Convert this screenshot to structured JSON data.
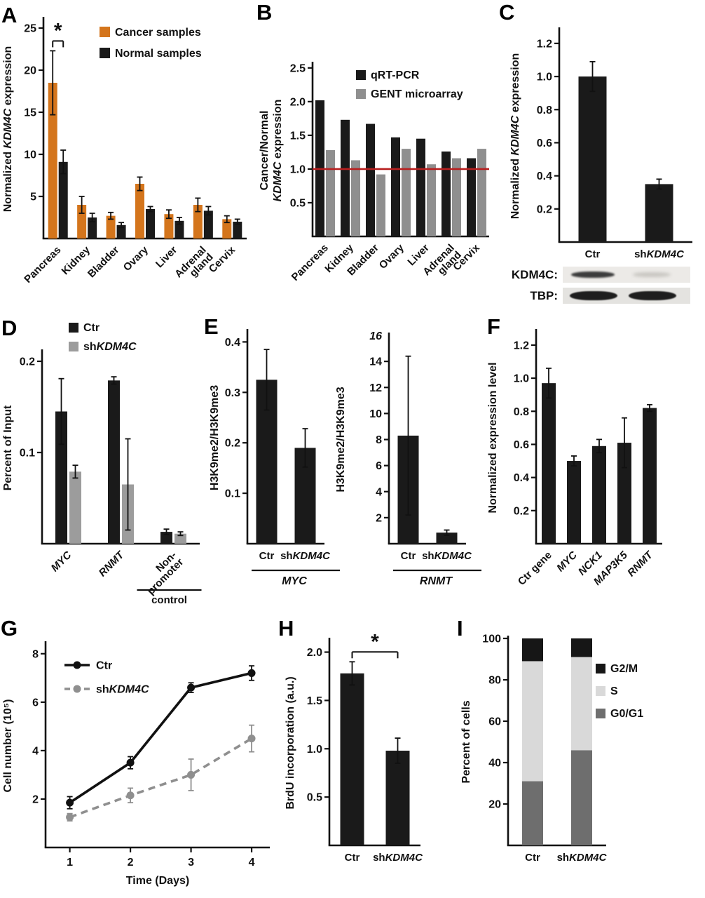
{
  "panel_letters": [
    "A",
    "B",
    "C",
    "D",
    "E",
    "F",
    "G",
    "H",
    "I"
  ],
  "western_blot": {
    "rows": [
      {
        "label": "KDM4C:"
      },
      {
        "label": "TBP:"
      }
    ]
  },
  "colors": {
    "cancer_orange": "#d4751c",
    "series_black": "#1a1a1a",
    "series_gray": "#8f8f8f",
    "stack_light_gray": "#d9d9d9",
    "stack_dark_gray": "#6e6e6e",
    "reference_red": "#b81f1f"
  },
  "chart_data": [
    {
      "panel": "A",
      "type": "bar",
      "ylabel": "Normalized *KDM4C* expression",
      "ylim": [
        0,
        26
      ],
      "yticks": [
        {
          "v": 5,
          "t": "5"
        },
        {
          "v": 10,
          "t": "10"
        },
        {
          "v": 15,
          "t": "15"
        },
        {
          "v": 20,
          "t": "20"
        },
        {
          "v": 25,
          "t": "25"
        }
      ],
      "categories": [
        "Pancreas",
        "Kidney",
        "Bladder",
        "Ovary",
        "Liver",
        "Adrenal\ngland",
        "Cervix"
      ],
      "series": [
        {
          "name": "Cancer samples",
          "color": "#d4751c",
          "values": [
            18.5,
            4.0,
            2.7,
            6.5,
            2.9,
            4.0,
            2.3
          ],
          "errors": [
            3.8,
            1.0,
            0.4,
            0.8,
            0.5,
            0.8,
            0.4
          ]
        },
        {
          "name": "Normal samples",
          "color": "#1a1a1a",
          "values": [
            9.1,
            2.5,
            1.6,
            3.5,
            2.1,
            3.3,
            2.0
          ],
          "errors": [
            1.4,
            0.5,
            0.3,
            0.3,
            0.4,
            0.5,
            0.3
          ]
        }
      ],
      "legend": true,
      "significance": {
        "label": "*",
        "mode": "series",
        "group": 0
      }
    },
    {
      "panel": "B",
      "type": "bar",
      "ylabel": "Cancer/Normal\n*KDM4C* expression",
      "ylim": [
        0,
        2.55
      ],
      "yticks": [
        {
          "v": 0.5,
          "t": "0.5"
        },
        {
          "v": 1.0,
          "t": "1.0"
        },
        {
          "v": 1.5,
          "t": "1.5"
        },
        {
          "v": 2.0,
          "t": "2.0"
        },
        {
          "v": 2.5,
          "t": "2.5"
        }
      ],
      "refline": {
        "v": 1.0,
        "color": "#b81f1f"
      },
      "categories": [
        "Pancreas",
        "Kidney",
        "Bladder",
        "Ovary",
        "Liver",
        "Adrenal\ngland",
        "Cervix"
      ],
      "series": [
        {
          "name": "qRT-PCR",
          "color": "#1a1a1a",
          "values": [
            2.02,
            1.73,
            1.67,
            1.47,
            1.45,
            1.26,
            1.16
          ]
        },
        {
          "name": "GENT microarray",
          "color": "#8f8f8f",
          "values": [
            1.28,
            1.13,
            0.92,
            1.3,
            1.07,
            1.16,
            1.3
          ]
        }
      ],
      "legend": true
    },
    {
      "panel": "C",
      "type": "bar",
      "ylabel": "Normalized *KDM4C* expression",
      "ylim": [
        0,
        1.28
      ],
      "yticks": [
        {
          "v": 0.2,
          "t": "0.2"
        },
        {
          "v": 0.4,
          "t": "0.4"
        },
        {
          "v": 0.6,
          "t": "0.6"
        },
        {
          "v": 0.8,
          "t": "0.8"
        },
        {
          "v": 1.0,
          "t": "1.0"
        },
        {
          "v": 1.2,
          "t": "1.2"
        }
      ],
      "categories": [
        "Ctr",
        "sh*KDM4C*"
      ],
      "series": [
        {
          "name": "",
          "color": "#1a1a1a",
          "values": [
            1.0,
            0.35
          ],
          "errors": [
            0.09,
            0.03
          ]
        }
      ]
    },
    {
      "panel": "D",
      "type": "bar",
      "ylabel": "Percent of Input",
      "ylim": [
        0,
        0.21
      ],
      "yticks": [
        {
          "v": 0.1,
          "t": "0.1"
        },
        {
          "v": 0.2,
          "t": "0.2"
        }
      ],
      "categories": [
        "*MYC*",
        "*RNMT*",
        "Non-\npromoter"
      ],
      "series": [
        {
          "name": "Ctr",
          "color": "#1a1a1a",
          "values": [
            0.145,
            0.179,
            0.013
          ],
          "errors": [
            0.036,
            0.004,
            0.003
          ]
        },
        {
          "name": "sh*KDM4C*",
          "color": "#9c9c9c",
          "values": [
            0.079,
            0.065,
            0.011
          ],
          "errors": [
            0.007,
            0.05,
            0.002
          ]
        }
      ],
      "legend": true,
      "footnote": {
        "label": "control",
        "group": 2
      }
    },
    {
      "panel": "E1",
      "type": "bar",
      "ylabel": "H3K9me2/H3K9me3",
      "ylim": [
        0,
        0.42
      ],
      "yticks": [
        {
          "v": 0.1,
          "t": "0.1"
        },
        {
          "v": 0.2,
          "t": "0.2"
        },
        {
          "v": 0.3,
          "t": "0.3"
        },
        {
          "v": 0.4,
          "t": "0.4"
        }
      ],
      "categories": [
        "Ctr",
        "sh*KDM4C*"
      ],
      "series": [
        {
          "name": "",
          "color": "#1a1a1a",
          "values": [
            0.325,
            0.19
          ],
          "errors": [
            0.06,
            0.038
          ]
        }
      ],
      "group_label": "*MYC*"
    },
    {
      "panel": "E2",
      "type": "bar",
      "ylabel": "H3K9me2/H3K9me3",
      "ylim": [
        0,
        16
      ],
      "top_tick": "16",
      "yticks": [
        {
          "v": 2,
          "t": "2"
        },
        {
          "v": 4,
          "t": "4"
        },
        {
          "v": 6,
          "t": "6"
        },
        {
          "v": 8,
          "t": "8"
        },
        {
          "v": 10,
          "t": "10"
        },
        {
          "v": 12,
          "t": "12"
        },
        {
          "v": 14,
          "t": "14"
        }
      ],
      "categories": [
        "Ctr",
        "sh*KDM4C*"
      ],
      "series": [
        {
          "name": "",
          "color": "#1a1a1a",
          "values": [
            8.3,
            0.85
          ],
          "errors": [
            6.1,
            0.2
          ]
        }
      ],
      "group_label": "*RNMT*"
    },
    {
      "panel": "F",
      "type": "bar",
      "ylabel": "Normalized expression level",
      "ylim": [
        0,
        1.28
      ],
      "yticks": [
        {
          "v": 0.2,
          "t": "0.2"
        },
        {
          "v": 0.4,
          "t": "0.4"
        },
        {
          "v": 0.6,
          "t": "0.6"
        },
        {
          "v": 0.8,
          "t": "0.8"
        },
        {
          "v": 1.0,
          "t": "1.0"
        },
        {
          "v": 1.2,
          "t": "1.2"
        }
      ],
      "categories": [
        "Ctr gene",
        "*MYC*",
        "*NCK1*",
        "*MAP3K5*",
        "*RNMT*"
      ],
      "series": [
        {
          "name": "",
          "color": "#1a1a1a",
          "values": [
            0.97,
            0.5,
            0.59,
            0.61,
            0.82
          ],
          "errors": [
            0.09,
            0.03,
            0.04,
            0.15,
            0.02
          ]
        }
      ]
    },
    {
      "panel": "G",
      "type": "line",
      "ylabel": "Cell number (10⁵)",
      "xlabel": "Time (Days)",
      "ylim": [
        0,
        8.4
      ],
      "yticks": [
        {
          "v": 2,
          "t": "2"
        },
        {
          "v": 4,
          "t": "4"
        },
        {
          "v": 6,
          "t": "6"
        },
        {
          "v": 8,
          "t": "8"
        }
      ],
      "xlim": [
        0.6,
        4.3
      ],
      "x": [
        1,
        2,
        3,
        4
      ],
      "xticks": [
        {
          "v": 1,
          "t": "1"
        },
        {
          "v": 2,
          "t": "2"
        },
        {
          "v": 3,
          "t": "3"
        },
        {
          "v": 4,
          "t": "4"
        }
      ],
      "series": [
        {
          "name": "Ctr",
          "color": "#111111",
          "dashed": false,
          "values": [
            1.85,
            3.5,
            6.6,
            7.2
          ],
          "errors": [
            0.25,
            0.25,
            0.2,
            0.3
          ]
        },
        {
          "name": "sh*KDM4C*",
          "color": "#8f8f8f",
          "dashed": true,
          "values": [
            1.25,
            2.15,
            3.0,
            4.5
          ],
          "errors": [
            0.15,
            0.3,
            0.65,
            0.55
          ]
        }
      ],
      "legend": true
    },
    {
      "panel": "H",
      "type": "bar",
      "ylabel": "BrdU incorporation (a.u.)",
      "ylim": [
        0,
        2.12
      ],
      "yticks": [
        {
          "v": 0.5,
          "t": "0.5"
        },
        {
          "v": 1.0,
          "t": "1.0"
        },
        {
          "v": 1.5,
          "t": "1.5"
        },
        {
          "v": 2.0,
          "t": "2.0"
        }
      ],
      "categories": [
        "Ctr",
        "sh*KDM4C*"
      ],
      "series": [
        {
          "name": "",
          "color": "#1a1a1a",
          "values": [
            1.78,
            0.98
          ],
          "errors": [
            0.12,
            0.13
          ]
        }
      ],
      "significance": {
        "label": "*",
        "mode": "categories",
        "cats": [
          0,
          1
        ]
      }
    },
    {
      "panel": "I",
      "type": "stacked",
      "ylabel": "Percent of cells",
      "ylim": [
        0,
        100
      ],
      "yticks": [
        {
          "v": 20,
          "t": "20"
        },
        {
          "v": 40,
          "t": "40"
        },
        {
          "v": 60,
          "t": "60"
        },
        {
          "v": 80,
          "t": "80"
        },
        {
          "v": 100,
          "t": "100"
        }
      ],
      "categories": [
        "Ctr",
        "sh*KDM4C*"
      ],
      "series": [
        {
          "name": "G0/G1",
          "color": "#6e6e6e",
          "values": [
            31,
            46
          ]
        },
        {
          "name": "S",
          "color": "#d9d9d9",
          "values": [
            58,
            45
          ]
        },
        {
          "name": "G2/M",
          "color": "#161616",
          "values": [
            11,
            9
          ]
        }
      ],
      "legend_items": [
        {
          "name": "G2/M",
          "color": "#161616"
        },
        {
          "name": "S",
          "color": "#d9d9d9"
        },
        {
          "name": "G0/G1",
          "color": "#6e6e6e"
        }
      ]
    }
  ]
}
